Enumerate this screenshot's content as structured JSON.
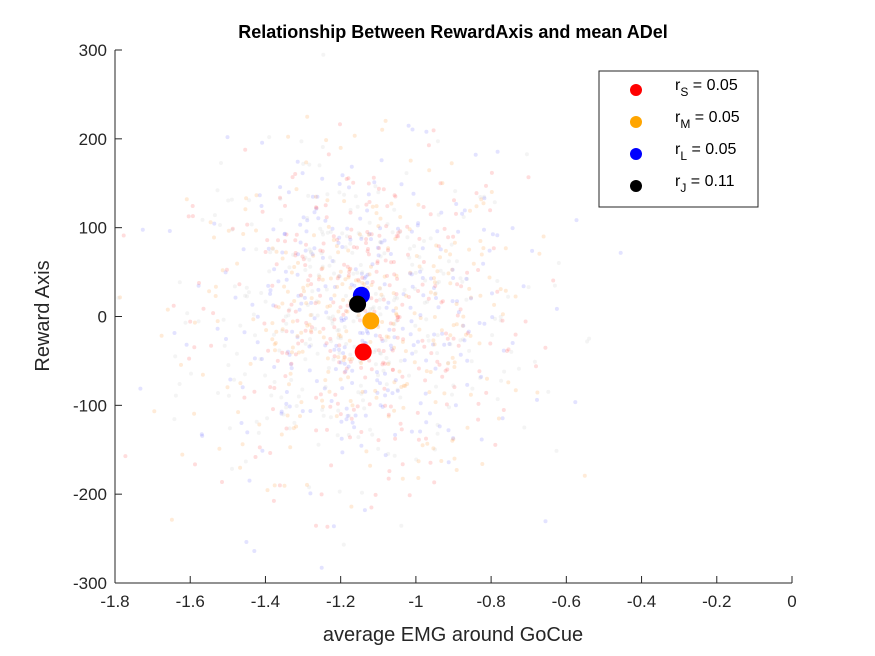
{
  "chart_data": {
    "type": "scatter",
    "title": "Relationship Between RewardAxis and mean ADel",
    "xlabel": "average EMG around GoCue",
    "ylabel": "Reward Axis",
    "xlim": [
      -1.8,
      0
    ],
    "ylim": [
      -300,
      300
    ],
    "xticks": [
      -1.8,
      -1.6,
      -1.4,
      -1.2,
      -1,
      -0.8,
      -0.6,
      -0.4,
      -0.2,
      0
    ],
    "xtick_labels": [
      "-1.8",
      "-1.6",
      "-1.4",
      "-1.2",
      "-1",
      "-0.8",
      "-0.6",
      "-0.4",
      "-0.2",
      "0"
    ],
    "yticks": [
      -300,
      -200,
      -100,
      0,
      100,
      200,
      300
    ],
    "ytick_labels": [
      "-300",
      "-200",
      "-100",
      "0",
      "100",
      "200",
      "300"
    ],
    "grid": false,
    "legend_position": "top-right",
    "background_cloud": {
      "description_visible": "faint semi-transparent scatter of individual trials",
      "x_center": -1.15,
      "y_center": 0,
      "x_spread": 0.22,
      "y_spread": 90,
      "colors": [
        "#ffa64d",
        "#ff6666",
        "#8080ff",
        "#cccccc"
      ]
    },
    "series": [
      {
        "name": "r_S = 0.05",
        "label_base": "r",
        "label_sub": "S",
        "label_value": " = 0.05",
        "color": "#ff0000",
        "x": -1.14,
        "y": -40
      },
      {
        "name": "r_M = 0.05",
        "label_base": "r",
        "label_sub": "M",
        "label_value": " = 0.05",
        "color": "#ffa500",
        "x": -1.12,
        "y": -5
      },
      {
        "name": "r_L = 0.05",
        "label_base": "r",
        "label_sub": "L",
        "label_value": " = 0.05",
        "color": "#0000ff",
        "x": -1.145,
        "y": 24
      },
      {
        "name": "r_J = 0.11",
        "label_base": "r",
        "label_sub": "J",
        "label_value": " = 0.11",
        "color": "#000000",
        "x": -1.155,
        "y": 14
      }
    ]
  }
}
